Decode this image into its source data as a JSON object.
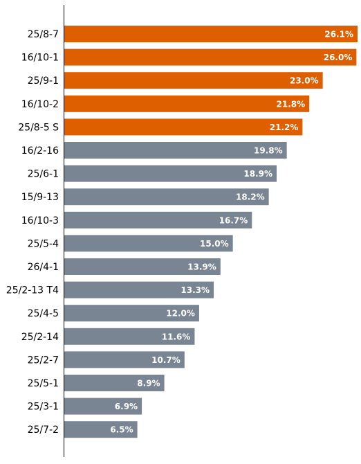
{
  "chart_data": {
    "type": "bar",
    "orientation": "horizontal",
    "categories": [
      "25/8-7",
      "16/10-1",
      "25/9-1",
      "16/10-2",
      "25/8-5 S",
      "16/2-16",
      "25/6-1",
      "15/9-13",
      "16/10-3",
      "25/5-4",
      "26/4-1",
      "25/2-13 T4",
      "25/4-5",
      "25/2-14",
      "25/2-7",
      "25/5-1",
      "25/3-1",
      "25/7-2"
    ],
    "values": [
      26.1,
      26.0,
      23.0,
      21.8,
      21.2,
      19.8,
      18.9,
      18.2,
      16.7,
      15.0,
      13.9,
      13.3,
      12.0,
      11.6,
      10.7,
      8.9,
      6.9,
      6.5
    ],
    "value_labels": [
      "26.1%",
      "26.0%",
      "23.0%",
      "21.8%",
      "21.2%",
      "19.8%",
      "18.9%",
      "18.2%",
      "16.7%",
      "15.0%",
      "13.9%",
      "13.3%",
      "12.0%",
      "11.6%",
      "10.7%",
      "8.9%",
      "6.9%",
      "6.5%"
    ],
    "highlight_count": 5,
    "title": "",
    "xlabel": "",
    "ylabel": "",
    "xlim": [
      0,
      26.1
    ],
    "grid": false,
    "legend": "none",
    "colors": {
      "highlight": "#dd5f00",
      "default": "#798592",
      "value_label": "#ffffff",
      "axis": "#000000"
    }
  }
}
